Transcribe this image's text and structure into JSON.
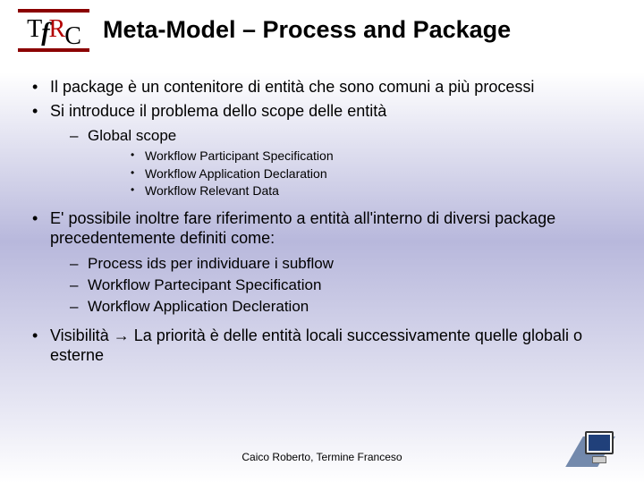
{
  "logo": {
    "letters": [
      "T",
      "f",
      "R",
      "C"
    ],
    "line_color": "#8b0000"
  },
  "title": "Meta-Model – Process and Package",
  "title_fontsize": 27,
  "body_fontsize": 18,
  "sub_fontsize": 17,
  "subsub_fontsize": 14,
  "text_color": "#000000",
  "background_gradient": [
    "#ffffff",
    "#b8b8dc",
    "#e8e8f4",
    "#ffffff"
  ],
  "bullets": {
    "b1_1": "Il package è un contenitore di entità che sono comuni a più processi",
    "b1_2": "Si introduce il problema dello scope delle entità",
    "b2_1": "Global scope",
    "b3_1": "Workflow Participant Specification",
    "b3_2": "Workflow Application Declaration",
    "b3_3": "Workflow Relevant Data",
    "b1_3": "E' possibile inoltre fare riferimento a entità all'interno di diversi package precedentemente definiti come:",
    "b2_2": "Process ids per individuare i subflow",
    "b2_3": "Workflow Partecipant Specification",
    "b2_4": "Workflow Application Decleration",
    "b1_4_pre": "Visibilità ",
    "b1_4_arrow": "→",
    "b1_4_post": " La priorità è delle entità locali successivamente quelle globali o esterne"
  },
  "footer": "Caico Roberto, Termine Franceso",
  "corner_icon": {
    "type": "computer-monitor",
    "screen_color": "#20407a",
    "shadow_color": "#3a5a8a"
  }
}
